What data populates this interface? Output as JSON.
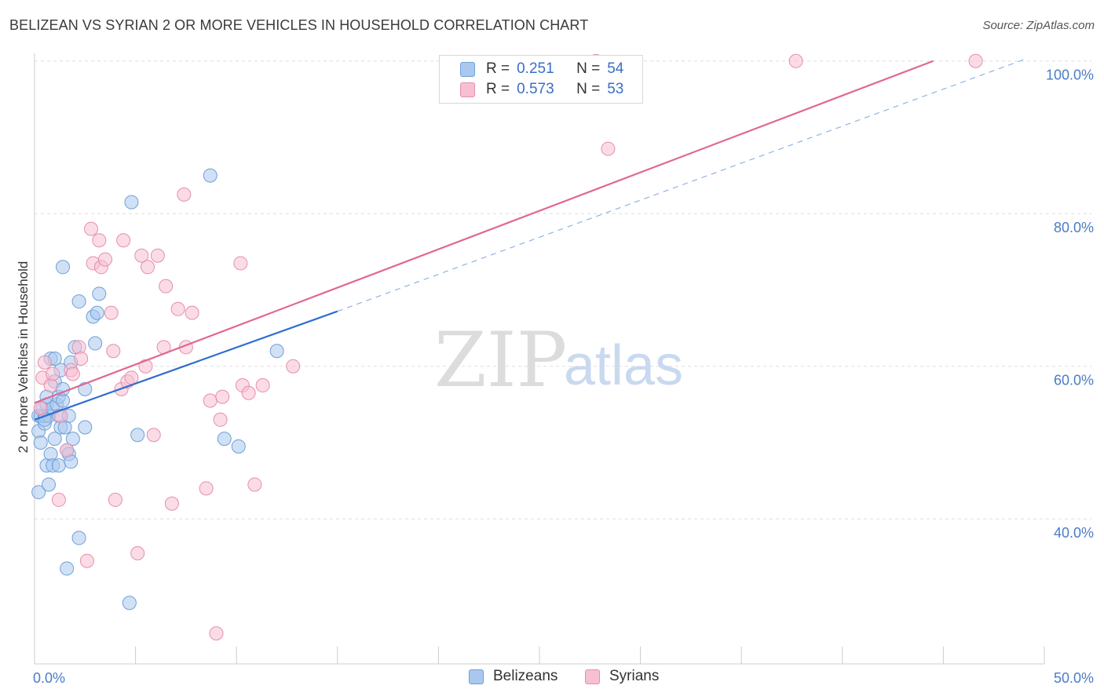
{
  "title": "BELIZEAN VS SYRIAN 2 OR MORE VEHICLES IN HOUSEHOLD CORRELATION CHART",
  "source": "Source: ZipAtlas.com",
  "watermark": {
    "zip": "ZIP",
    "atlas": "atlas"
  },
  "legend": {
    "r_label": "R =",
    "n_label": "N =",
    "rows": [
      {
        "r": "0.251",
        "n": "54"
      },
      {
        "r": "0.573",
        "n": "53"
      }
    ]
  },
  "chart_data": {
    "type": "scatter",
    "title": "BELIZEAN VS SYRIAN 2 OR MORE VEHICLES IN HOUSEHOLD CORRELATION CHART",
    "xlabel": "",
    "ylabel": "2 or more Vehicles in Household",
    "xlim": [
      0,
      50
    ],
    "ylim": [
      21,
      101
    ],
    "x_tick_labels": [
      "0.0%",
      "50.0%"
    ],
    "y_ticks": [
      40,
      60,
      80,
      100
    ],
    "y_tick_labels": [
      "40.0%",
      "60.0%",
      "80.0%",
      "100.0%"
    ],
    "grid": true,
    "legend_position": "bottom-center",
    "colors": {
      "belizeans_fill": "#aac8ef",
      "belizeans_stroke": "#6f9fd8",
      "belizeans_line": "#2f6fd0",
      "syrians_fill": "#f7bfd2",
      "syrians_stroke": "#e58eac",
      "syrians_line": "#e06890",
      "grid": "#dddddd",
      "axis": "#cccccc"
    },
    "series": [
      {
        "name": "Belizeans",
        "r": 0.251,
        "n": 54,
        "trend": {
          "x0": 0,
          "y0": 53.0,
          "x1": 15.0,
          "y1": 67.2,
          "dashed_to_x": 49.0,
          "dashed_to_y": 100.2
        },
        "points": [
          [
            0.2,
            43.5
          ],
          [
            0.2,
            53.5
          ],
          [
            0.2,
            51.5
          ],
          [
            0.3,
            50.0
          ],
          [
            0.3,
            53.5
          ],
          [
            0.4,
            54.5
          ],
          [
            0.5,
            52.5
          ],
          [
            0.5,
            53.5
          ],
          [
            0.6,
            47.0
          ],
          [
            0.6,
            55.0
          ],
          [
            0.6,
            56.0
          ],
          [
            0.7,
            44.5
          ],
          [
            0.7,
            53.5
          ],
          [
            0.8,
            61.0
          ],
          [
            0.8,
            48.5
          ],
          [
            0.9,
            54.5
          ],
          [
            0.9,
            47.0
          ],
          [
            1.0,
            50.5
          ],
          [
            1.0,
            58.0
          ],
          [
            1.0,
            61.0
          ],
          [
            1.1,
            55.0
          ],
          [
            1.2,
            56.0
          ],
          [
            1.2,
            53.5
          ],
          [
            1.2,
            47.0
          ],
          [
            1.3,
            59.5
          ],
          [
            1.3,
            52.0
          ],
          [
            1.4,
            55.5
          ],
          [
            1.4,
            57.0
          ],
          [
            1.4,
            73.0
          ],
          [
            1.5,
            52.0
          ],
          [
            1.6,
            49.0
          ],
          [
            1.6,
            33.5
          ],
          [
            1.7,
            53.5
          ],
          [
            1.7,
            48.5
          ],
          [
            1.8,
            60.5
          ],
          [
            1.8,
            47.5
          ],
          [
            1.9,
            50.5
          ],
          [
            2.0,
            62.5
          ],
          [
            2.2,
            68.5
          ],
          [
            2.2,
            37.5
          ],
          [
            2.5,
            52.0
          ],
          [
            2.5,
            57.0
          ],
          [
            2.9,
            66.5
          ],
          [
            3.0,
            63.0
          ],
          [
            3.1,
            67.0
          ],
          [
            3.2,
            69.5
          ],
          [
            4.7,
            29.0
          ],
          [
            4.8,
            81.5
          ],
          [
            5.1,
            51.0
          ],
          [
            8.7,
            85.0
          ],
          [
            9.4,
            50.5
          ],
          [
            10.1,
            49.5
          ],
          [
            12.0,
            62.0
          ],
          [
            0.5,
            53.0
          ]
        ]
      },
      {
        "name": "Syrians",
        "r": 0.573,
        "n": 53,
        "trend": {
          "x0": 0,
          "y0": 55.2,
          "x1": 44.5,
          "y1": 100.0
        },
        "points": [
          [
            0.3,
            54.5
          ],
          [
            0.4,
            58.5
          ],
          [
            0.5,
            60.5
          ],
          [
            0.8,
            57.5
          ],
          [
            0.9,
            59.0
          ],
          [
            1.2,
            42.5
          ],
          [
            1.3,
            53.5
          ],
          [
            1.6,
            49.0
          ],
          [
            1.8,
            59.5
          ],
          [
            1.9,
            59.0
          ],
          [
            2.2,
            62.5
          ],
          [
            2.3,
            61.0
          ],
          [
            2.6,
            34.5
          ],
          [
            2.8,
            78.0
          ],
          [
            2.9,
            73.5
          ],
          [
            3.2,
            76.5
          ],
          [
            3.3,
            73.0
          ],
          [
            3.5,
            74.0
          ],
          [
            3.8,
            67.0
          ],
          [
            3.9,
            62.0
          ],
          [
            4.0,
            42.5
          ],
          [
            4.3,
            57.0
          ],
          [
            4.4,
            76.5
          ],
          [
            4.6,
            58.0
          ],
          [
            4.8,
            58.5
          ],
          [
            5.1,
            35.5
          ],
          [
            5.3,
            74.5
          ],
          [
            5.5,
            60.0
          ],
          [
            5.6,
            73.0
          ],
          [
            5.9,
            51.0
          ],
          [
            6.1,
            74.5
          ],
          [
            6.4,
            62.5
          ],
          [
            6.5,
            70.5
          ],
          [
            6.8,
            42.0
          ],
          [
            7.1,
            67.5
          ],
          [
            7.4,
            82.5
          ],
          [
            7.5,
            62.5
          ],
          [
            7.8,
            67.0
          ],
          [
            8.5,
            44.0
          ],
          [
            8.7,
            55.5
          ],
          [
            9.0,
            25.0
          ],
          [
            9.2,
            53.0
          ],
          [
            9.3,
            56.0
          ],
          [
            10.2,
            73.5
          ],
          [
            10.3,
            57.5
          ],
          [
            10.6,
            56.5
          ],
          [
            10.9,
            44.5
          ],
          [
            11.3,
            57.5
          ],
          [
            27.8,
            100.0
          ],
          [
            28.4,
            88.5
          ],
          [
            37.7,
            100.0
          ],
          [
            46.6,
            100.0
          ],
          [
            12.8,
            60.0
          ]
        ]
      }
    ]
  }
}
